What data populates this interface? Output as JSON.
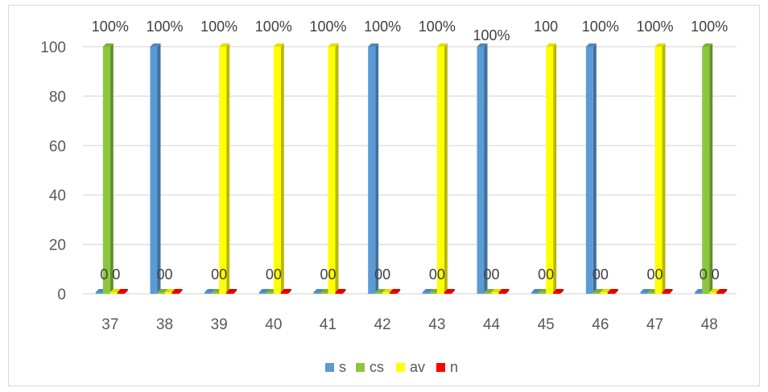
{
  "chart_data": {
    "type": "bar",
    "title": "",
    "xlabel": "",
    "ylabel": "",
    "categories": [
      "37",
      "38",
      "39",
      "40",
      "41",
      "42",
      "43",
      "44",
      "45",
      "46",
      "47",
      "48"
    ],
    "ylim": [
      0,
      100
    ],
    "yticks": [
      0,
      20,
      40,
      60,
      80,
      100
    ],
    "grid": true,
    "legend_position": "bottom",
    "series": [
      {
        "name": "s",
        "color": "#5b9bd5",
        "values": [
          0,
          100,
          0,
          0,
          0,
          100,
          0,
          100,
          0,
          100,
          0,
          0
        ]
      },
      {
        "name": "cs",
        "color": "#8cc63f",
        "values": [
          100,
          0,
          0,
          0,
          0,
          0,
          0,
          0,
          0,
          0,
          0,
          100
        ]
      },
      {
        "name": "av",
        "color": "#ffff00",
        "values": [
          0,
          0,
          100,
          100,
          100,
          0,
          100,
          0,
          100,
          0,
          100,
          0
        ]
      },
      {
        "name": "n",
        "color": "#ff0000",
        "values": [
          0,
          0,
          0,
          0,
          0,
          0,
          0,
          0,
          0,
          0,
          0,
          0
        ]
      }
    ],
    "data_labels": [
      {
        "category": "37",
        "top": "100%",
        "bottom": "0 0"
      },
      {
        "category": "38",
        "top": "100%",
        "bottom": "00"
      },
      {
        "category": "39",
        "top": "100%",
        "bottom": "00"
      },
      {
        "category": "40",
        "top": "100%",
        "bottom": "00"
      },
      {
        "category": "41",
        "top": "100%",
        "bottom": "00"
      },
      {
        "category": "42",
        "top": "100%",
        "bottom": "00"
      },
      {
        "category": "43",
        "top": "100%",
        "bottom": "00"
      },
      {
        "category": "44",
        "top": "100%",
        "bottom": "00"
      },
      {
        "category": "45",
        "top": "100",
        "bottom": "00"
      },
      {
        "category": "46",
        "top": "100%",
        "bottom": "00"
      },
      {
        "category": "47",
        "top": "100%",
        "bottom": "00"
      },
      {
        "category": "48",
        "top": "100%",
        "bottom": "0 0"
      }
    ]
  }
}
